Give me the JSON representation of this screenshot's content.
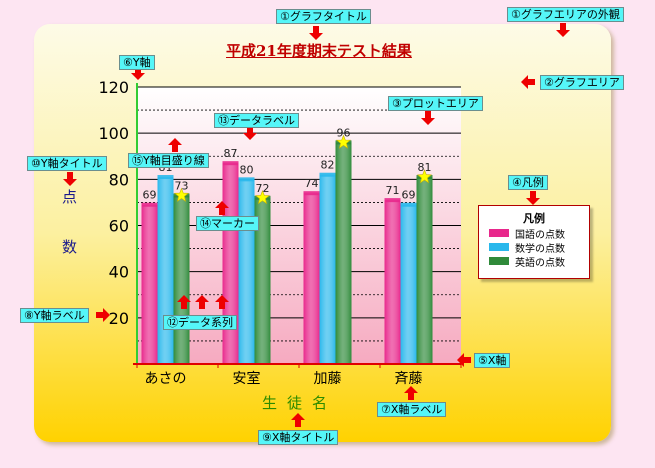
{
  "chart_data": {
    "type": "bar",
    "title": "平成21年度期末テスト結果",
    "xlabel": "生徒名",
    "ylabel": "点数",
    "categories": [
      "あさの",
      "安室",
      "加藤",
      "斉藤"
    ],
    "series": [
      {
        "name": "国語の点数",
        "values": [
          69,
          87,
          74,
          71
        ],
        "color": "#e8288c"
      },
      {
        "name": "数学の点数",
        "values": [
          81,
          80,
          82,
          69
        ],
        "color": "#29b8ec"
      },
      {
        "name": "英語の点数",
        "values": [
          73,
          72,
          96,
          81
        ],
        "color": "#2f8a3a"
      }
    ],
    "ylim": [
      0,
      120
    ],
    "yticks": [
      20,
      40,
      60,
      80,
      100,
      120
    ],
    "grid": true,
    "legend_position": "right",
    "legend_title": "凡例",
    "colors": {
      "plot_area_top": "#ffffff",
      "plot_area_bottom": "#f6aac0",
      "axis": "#e00000",
      "title": "#c00000",
      "marker": "#ffff00"
    }
  },
  "callouts": [
    {
      "id": "graph-title",
      "label": "①グラフタイトル"
    },
    {
      "id": "graph-area-outside",
      "label": "①グラフエリアの外観"
    },
    {
      "id": "graph-area",
      "label": "②グラフエリア"
    },
    {
      "id": "plot-area",
      "label": "③プロットエリア"
    },
    {
      "id": "legend",
      "label": "④凡例"
    },
    {
      "id": "x-axis",
      "label": "⑤X軸"
    },
    {
      "id": "y-axis",
      "label": "⑥Y軸"
    },
    {
      "id": "x-axis-label",
      "label": "⑦X軸ラベル"
    },
    {
      "id": "y-axis-label",
      "label": "⑧Y軸ラベル"
    },
    {
      "id": "x-axis-title",
      "label": "⑨X軸タイトル"
    },
    {
      "id": "y-axis-title",
      "label": "⑩Y軸タイトル"
    },
    {
      "id": "data-series",
      "label": "⑫データ系列"
    },
    {
      "id": "data-label",
      "label": "⑬データラベル"
    },
    {
      "id": "marker",
      "label": "⑭マーカー"
    },
    {
      "id": "y-gridlines",
      "label": "⑮Y軸目盛り線"
    }
  ]
}
